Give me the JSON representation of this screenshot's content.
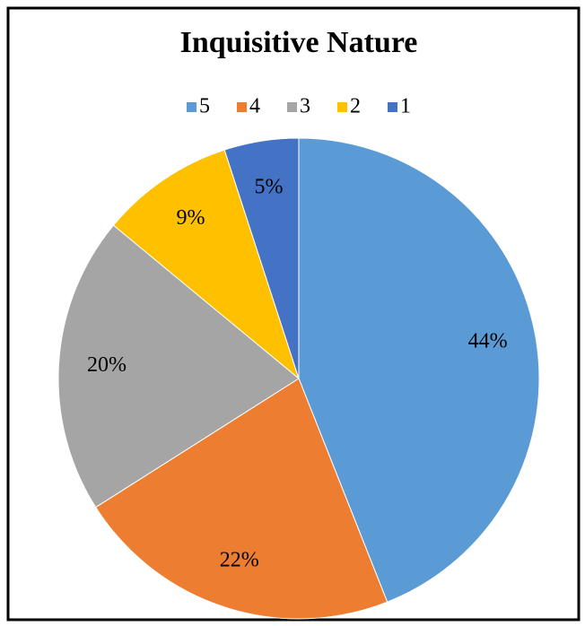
{
  "chart_data": {
    "type": "pie",
    "title": "Inquisitive Nature",
    "categories": [
      "5",
      "4",
      "3",
      "2",
      "1"
    ],
    "values": [
      44,
      22,
      20,
      9,
      5
    ],
    "value_labels": [
      "44%",
      "22%",
      "20%",
      "9%",
      "5%"
    ],
    "colors": [
      "#5b9bd5",
      "#ed7d31",
      "#a5a5a5",
      "#ffc000",
      "#4472c4"
    ],
    "legend": "top"
  }
}
